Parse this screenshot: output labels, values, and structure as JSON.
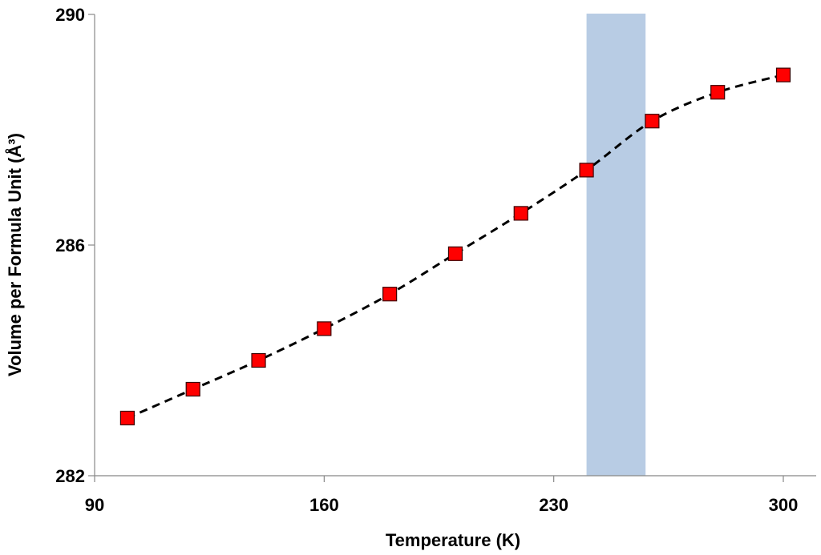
{
  "chart_data": {
    "type": "scatter",
    "xlabel": "Temperature (K)",
    "ylabel": "Volume per Formula Unit (Å³)",
    "xlim": [
      90,
      300
    ],
    "ylim": [
      282,
      290
    ],
    "xticks": [
      90,
      160,
      230,
      300
    ],
    "yticks": [
      282,
      286,
      290
    ],
    "x_tick_labels": [
      "90",
      "160",
      "230",
      "300"
    ],
    "y_tick_labels": [
      "282",
      "286",
      "290"
    ],
    "grid": false,
    "legend": "none",
    "highlight_band": {
      "x_from": 240,
      "x_to": 258,
      "color": "#b8cce4"
    },
    "series": [
      {
        "marker": "square",
        "marker_color": "#ff0000",
        "line_style": "dashed",
        "line_color": "#000000",
        "x": [
          100,
          120,
          140,
          160,
          180,
          200,
          220,
          240,
          260,
          280,
          300
        ],
        "y": [
          283.0,
          283.5,
          284.0,
          284.55,
          285.15,
          285.85,
          286.55,
          287.3,
          288.15,
          288.65,
          288.95
        ]
      }
    ]
  }
}
